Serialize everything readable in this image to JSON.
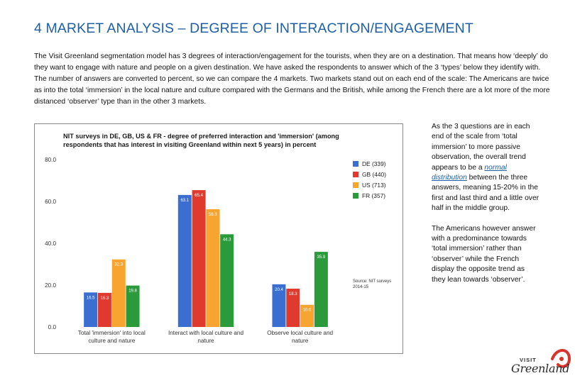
{
  "slide": {
    "title": "4 MARKET ANALYSIS – DEGREE OF INTERACTION/ENGAGEMENT",
    "intro": "The Visit Greenland segmentation model has 3 degrees of interaction/engagement for the tourists, when they are on a destination. That means how ‘deeply’ do they want to engage with nature and people on a given destination. We have asked the respondents to answer which of the 3 ‘types’ below they identify with. The number of answers are converted to percent, so we can compare the 4 markets. Two markets stand out on each end of the scale: The Americans are twice as into the total ‘immersion’ in the local nature and culture compared with the Germans and the British, while among the French there are a lot more of the more distanced ‘observer’ type than in the other 3 markets.",
    "side_p1_before": "As the 3 questions are in each end of the scale from ‘total immersion’ to more passive observation, the overall trend appears to be a ",
    "side_p1_link": "normal distribution",
    "side_p1_after": " between the three answers, meaning 15-20% in the first and last third and a little over half in the middle group.",
    "side_p2": "The Americans however answer with a predominance towards ‘total immersion’ rather than ‘observer’ while the French display the opposite trend as they lean towards ‘observer’.",
    "logo_top": "VISIT",
    "logo_word": "Greenland"
  },
  "chart_data": {
    "type": "bar",
    "title": "NIT surveys in DE, GB, US & FR - degree of preferred interaction and 'immersion' (among respondents that has interest in visiting Greenland within next 5 years) in percent",
    "categories": [
      [
        "Total 'immersion' into local",
        "culture and nature"
      ],
      [
        "Interact with local culture and",
        "nature"
      ],
      [
        "Observe local culture and",
        "nature"
      ]
    ],
    "ylim": [
      0,
      80
    ],
    "yticks": [
      "0.0",
      "20.0",
      "40.0",
      "60.0",
      "80.0"
    ],
    "series": [
      {
        "name": "DE (339)",
        "color": "#3a6fd1",
        "values": [
          16.5,
          63.1,
          20.4
        ],
        "labels": [
          "16.5",
          "63.1",
          "20.4"
        ]
      },
      {
        "name": "GB (440)",
        "color": "#e03a2f",
        "values": [
          16.3,
          65.4,
          18.3
        ],
        "labels": [
          "16.3",
          "65.4",
          "18.3"
        ]
      },
      {
        "name": "US (713)",
        "color": "#f8a431",
        "values": [
          32.3,
          56.3,
          10.6
        ],
        "labels": [
          "32.3",
          "56.3",
          "10.6"
        ]
      },
      {
        "name": "FR (357)",
        "color": "#2a9a3a",
        "values": [
          19.8,
          44.3,
          35.9
        ],
        "labels": [
          "19.8",
          "44.3",
          "35.9"
        ]
      }
    ],
    "source": "Source: NIT surveys 2014-15",
    "grid": false,
    "legend": "right"
  }
}
